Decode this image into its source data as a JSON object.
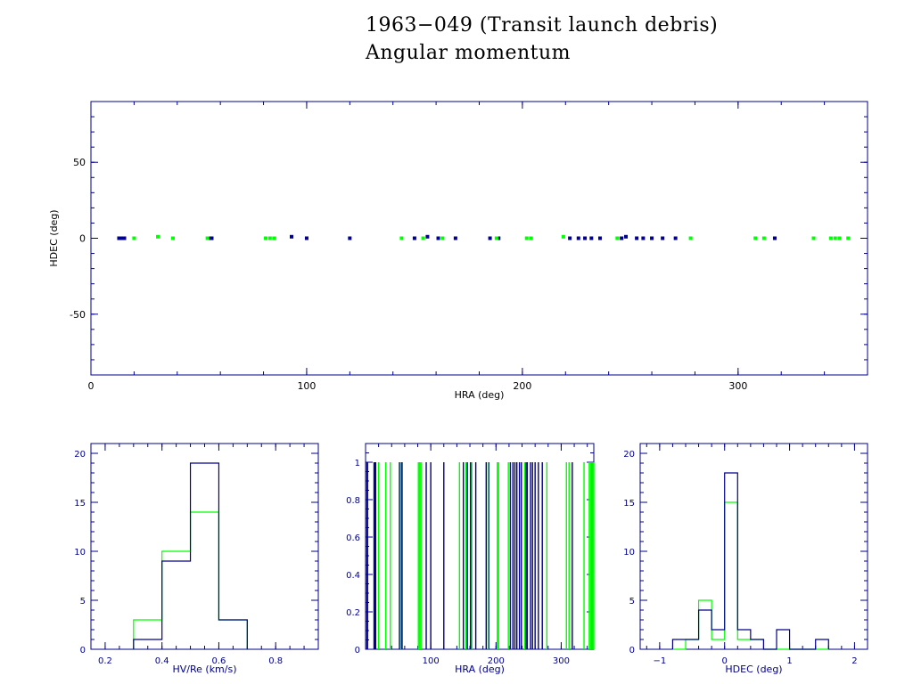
{
  "title_line1": "1963−049 (Transit launch debris)",
  "title_line2": "Angular momentum",
  "colors": {
    "axis": "#00008b",
    "series_blue": "#00008b",
    "series_green": "#00ff00",
    "text": "#000000"
  },
  "chart_data": [
    {
      "id": "scatter",
      "type": "scatter",
      "xlabel": "HRA (deg)",
      "ylabel": "HDEC (deg)",
      "xlim": [
        0,
        360
      ],
      "ylim": [
        -90,
        90
      ],
      "xticks": [
        0,
        100,
        200,
        300
      ],
      "yticks": [
        -50,
        0,
        50
      ],
      "series": [
        {
          "color": "blue",
          "points": [
            [
              13,
              0
            ],
            [
              14,
              0
            ],
            [
              15.5,
              0
            ],
            [
              55,
              0
            ],
            [
              56,
              0
            ],
            [
              93,
              1
            ],
            [
              100,
              0
            ],
            [
              120,
              0
            ],
            [
              150,
              0
            ],
            [
              156,
              1
            ],
            [
              161,
              0
            ],
            [
              169,
              0
            ],
            [
              185,
              0
            ],
            [
              189,
              0
            ],
            [
              222,
              0
            ],
            [
              226,
              0
            ],
            [
              229,
              0
            ],
            [
              232,
              0
            ],
            [
              236,
              0
            ],
            [
              246,
              0
            ],
            [
              248,
              1
            ],
            [
              253,
              0
            ],
            [
              256,
              0
            ],
            [
              260,
              0
            ],
            [
              265,
              0
            ],
            [
              271,
              0
            ],
            [
              317,
              0
            ]
          ]
        },
        {
          "color": "green",
          "points": [
            [
              20,
              0
            ],
            [
              31,
              1
            ],
            [
              38,
              0
            ],
            [
              54,
              0
            ],
            [
              81,
              0
            ],
            [
              83,
              0
            ],
            [
              85,
              0
            ],
            [
              144,
              0
            ],
            [
              154,
              0
            ],
            [
              163,
              0
            ],
            [
              188,
              0
            ],
            [
              202,
              0
            ],
            [
              204,
              0
            ],
            [
              219,
              1
            ],
            [
              244,
              0
            ],
            [
              278,
              0
            ],
            [
              308,
              0
            ],
            [
              312,
              0
            ],
            [
              335,
              0
            ],
            [
              343,
              0
            ],
            [
              345,
              0
            ],
            [
              347,
              0
            ],
            [
              351,
              0
            ]
          ]
        }
      ]
    },
    {
      "id": "hist_v",
      "type": "bar",
      "xlabel": "HV/Re (km/s)",
      "xlim": [
        0.15,
        0.95
      ],
      "ylim": [
        0,
        21
      ],
      "xticks": [
        0.2,
        0.4,
        0.6,
        0.8
      ],
      "xticklabels": [
        "0.2",
        "0.4",
        "0.6",
        "0.8"
      ],
      "yticks": [
        0,
        5,
        10,
        15,
        20
      ],
      "bin_edges": [
        0.3,
        0.4,
        0.5,
        0.6,
        0.7
      ],
      "series": [
        {
          "color": "blue",
          "values": [
            1,
            9,
            19,
            3
          ]
        },
        {
          "color": "green",
          "values": [
            3,
            10,
            14,
            3
          ]
        }
      ]
    },
    {
      "id": "hist_hra",
      "type": "bar",
      "xlabel": "HRA (deg)",
      "xlim": [
        0,
        350
      ],
      "ylim": [
        0,
        1.1
      ],
      "xticks": [
        100,
        200,
        300
      ],
      "yticks": [
        0,
        0.2,
        0.4,
        0.6,
        0.8,
        1
      ],
      "yticklabels": [
        "0",
        "0.2",
        "0.4",
        "0.6",
        "0.8",
        "1"
      ],
      "series": [
        {
          "color": "blue",
          "lines": [
            2,
            3,
            13,
            14,
            15.5,
            52,
            55,
            56,
            93,
            100,
            120,
            150,
            156,
            161,
            169,
            185,
            189,
            222,
            226,
            229,
            232,
            236,
            239,
            246,
            248,
            253,
            256,
            260,
            265,
            271,
            317,
            346,
            348
          ]
        },
        {
          "color": "green",
          "lines": [
            20,
            31,
            38,
            54,
            81,
            83,
            85,
            144,
            154,
            163,
            188,
            202,
            204,
            219,
            244,
            278,
            308,
            312,
            335,
            343,
            345,
            347,
            349,
            350
          ]
        }
      ]
    },
    {
      "id": "hist_hdec",
      "type": "bar",
      "xlabel": "HDEC (deg)",
      "xlim": [
        -1.3,
        2.2
      ],
      "ylim": [
        0,
        21
      ],
      "xticks": [
        -1,
        0,
        1,
        2
      ],
      "xticklabels": [
        "−1",
        "0",
        "1",
        "2"
      ],
      "yticks": [
        0,
        5,
        10,
        15,
        20
      ],
      "bin_edges": [
        -0.8,
        -0.6,
        -0.4,
        -0.2,
        0,
        0.2,
        0.4,
        0.6,
        0.8,
        1.0,
        1.2,
        1.4,
        1.6
      ],
      "series": [
        {
          "color": "blue",
          "values": [
            1,
            1,
            4,
            2,
            18,
            2,
            1,
            0,
            2,
            0,
            0,
            1
          ]
        },
        {
          "color": "green",
          "values": [
            0,
            1,
            5,
            1,
            15,
            1,
            1,
            0,
            0,
            0,
            0,
            0
          ]
        }
      ]
    }
  ]
}
